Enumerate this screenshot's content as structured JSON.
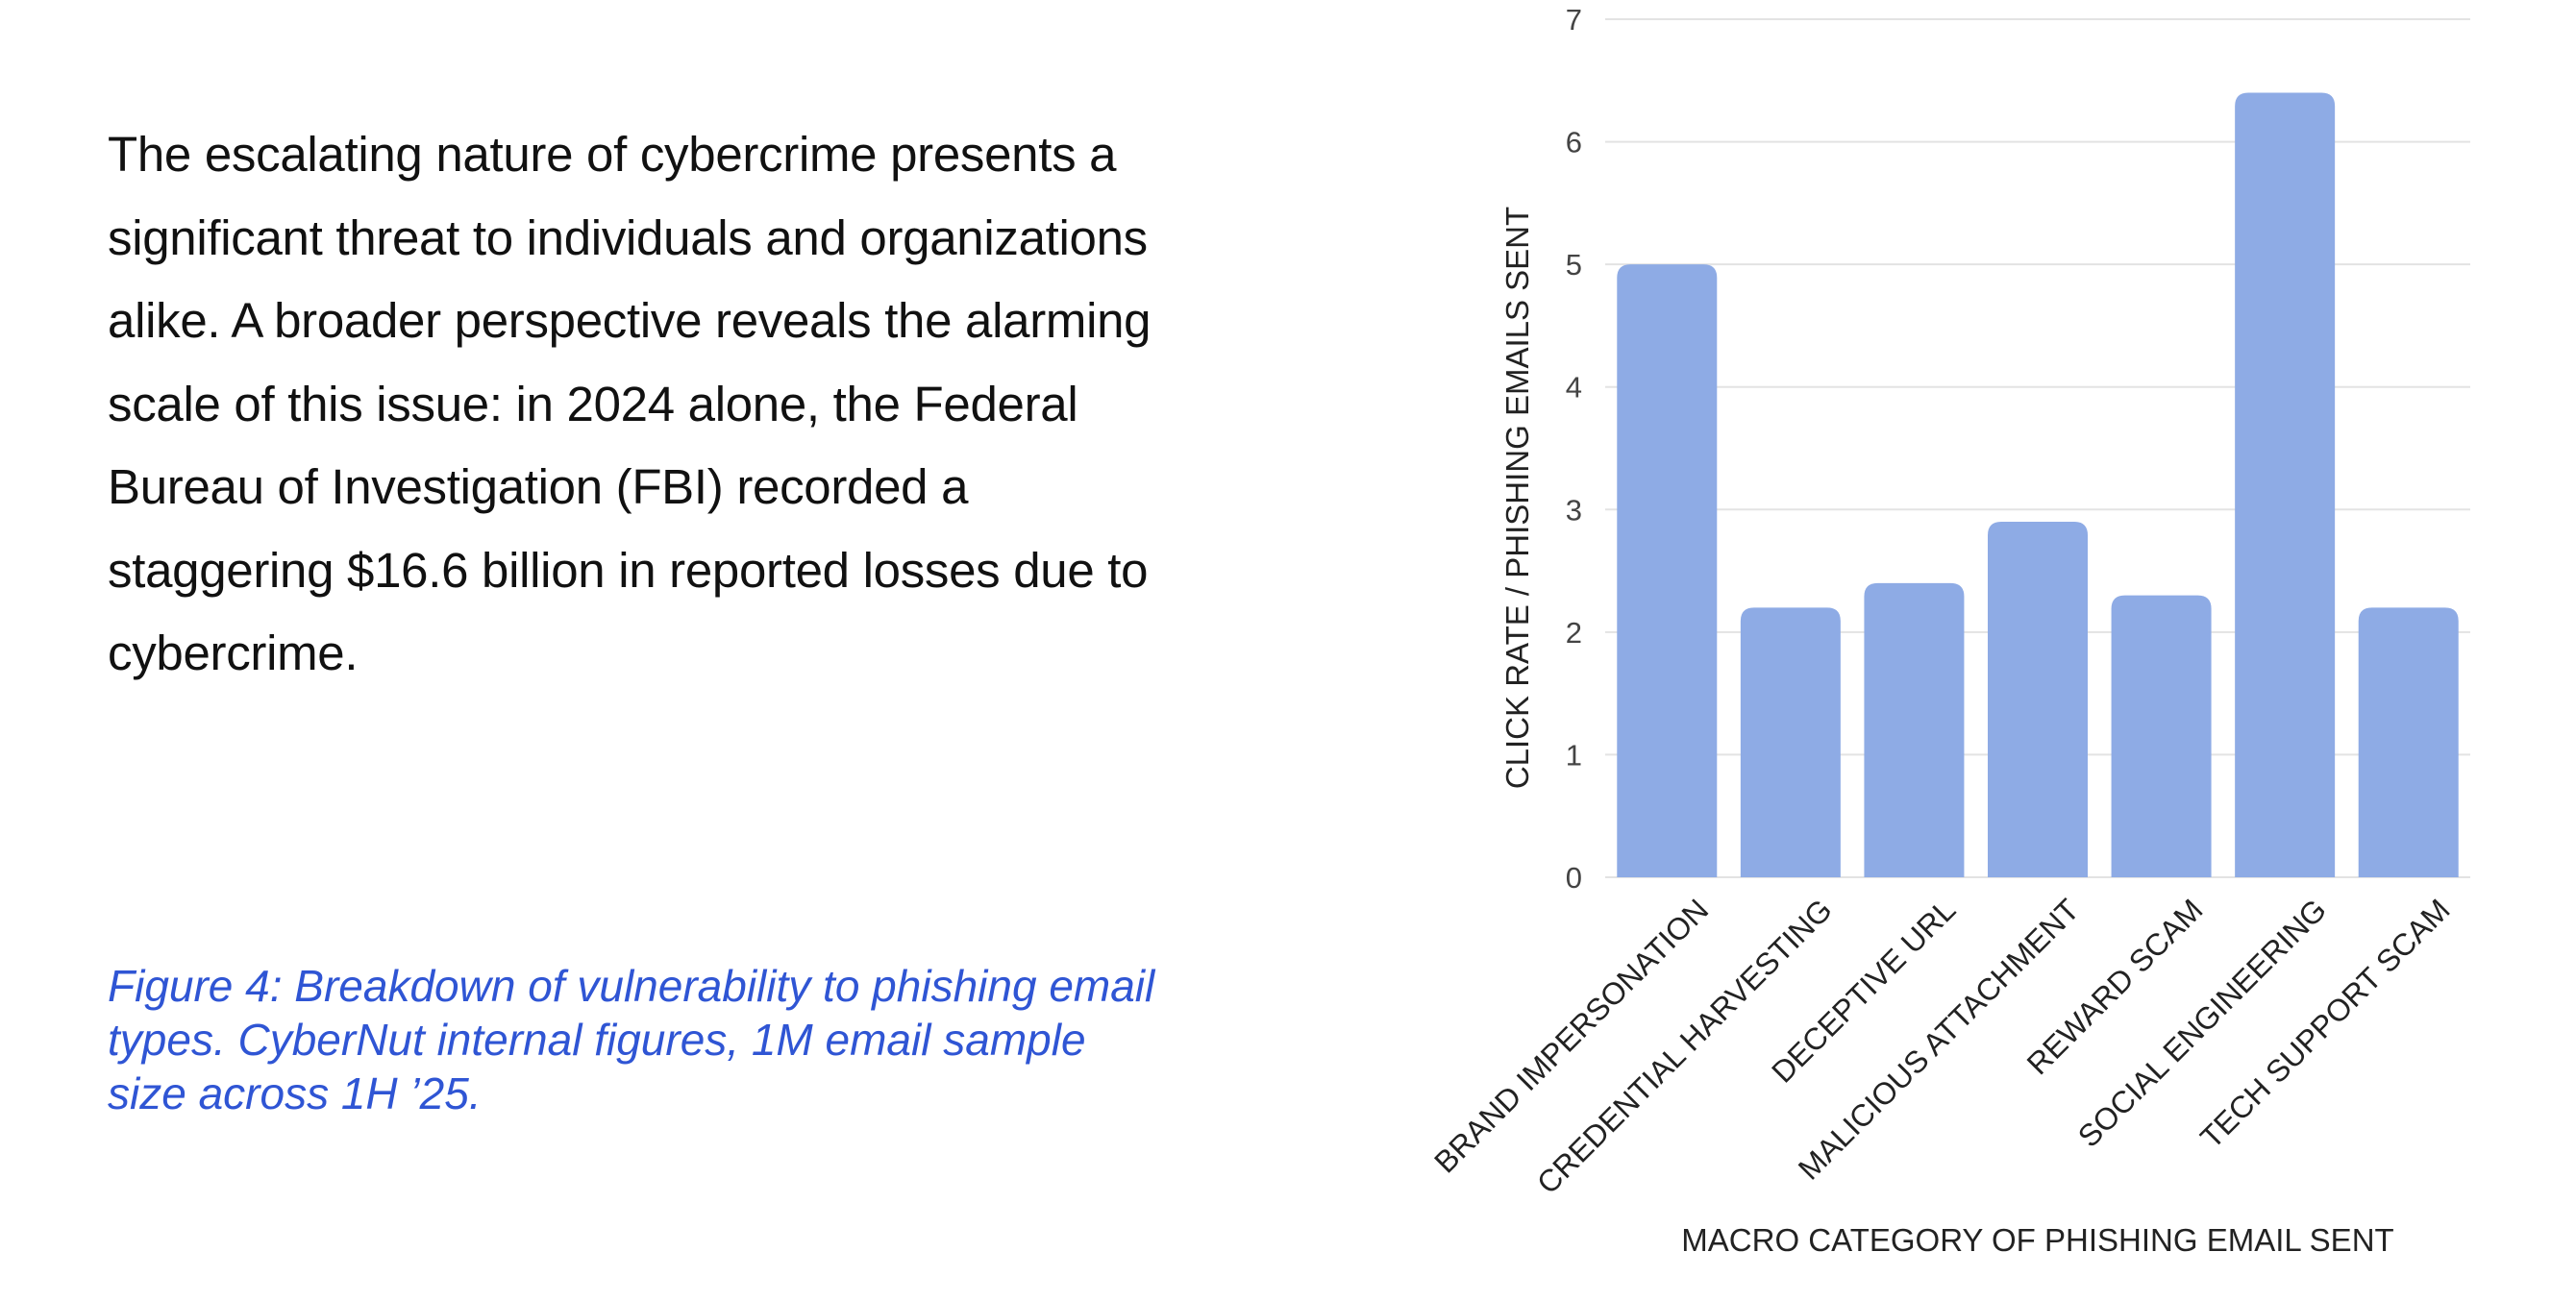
{
  "article": {
    "paragraph": "The escalating nature of cybercrime presents a significant threat to individuals and organizations alike. A broader perspective reveals the alarming scale of this issue: in 2024 alone, the Federal Bureau of Investigation (FBI) recorded a staggering $16.6 billion in reported losses due to cybercrime.",
    "caption_label": "Figure 4:",
    "caption_text": " Breakdown of vulnerability to phishing email types. CyberNut internal figures, 1M email sample size across 1H ’25."
  },
  "colors": {
    "bar": "#8eabe5",
    "grid": "#e3e3e3",
    "caption": "#2f55d4"
  },
  "chart_data": {
    "type": "bar",
    "categories": [
      "BRAND IMPERSONATION",
      "CREDENTIAL HARVESTING",
      "DECEPTIVE URL",
      "MALICIOUS ATTACHMENT",
      "REWARD SCAM",
      "SOCIAL ENGINEERING",
      "TECH SUPPORT SCAM"
    ],
    "values": [
      5.0,
      2.2,
      2.4,
      2.9,
      2.3,
      6.4,
      2.2
    ],
    "xlabel": "MACRO CATEGORY OF PHISHING EMAIL SENT",
    "ylabel": "CLICK RATE / PHISHING EMAILS SENT",
    "ylim": [
      0,
      7
    ],
    "yticks": [
      0,
      1,
      2,
      3,
      4,
      5,
      6,
      7
    ],
    "grid": true
  }
}
